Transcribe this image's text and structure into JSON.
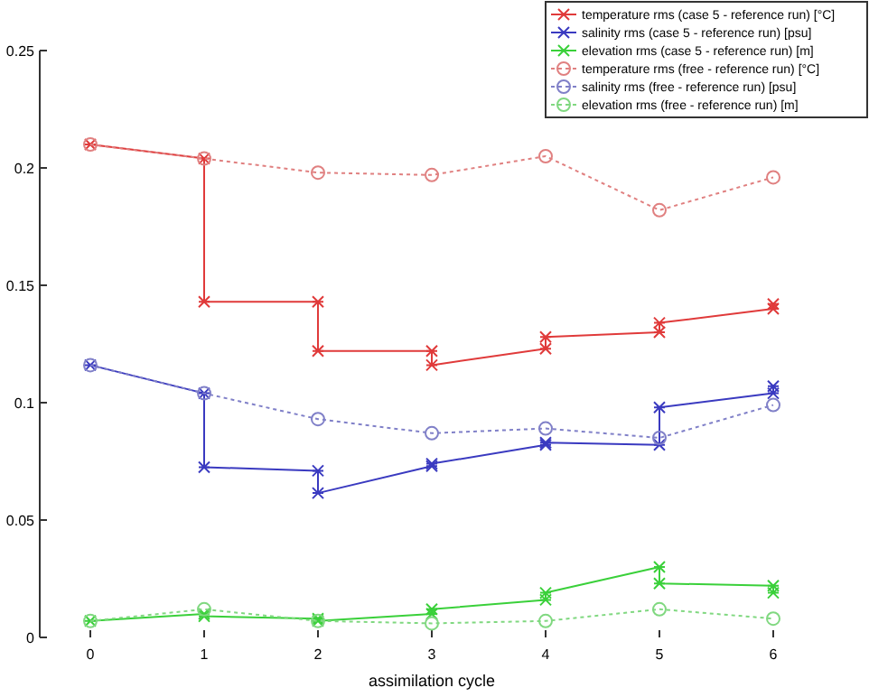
{
  "chart_data": {
    "type": "line",
    "xlabel": "assimilation cycle",
    "xlim": [
      0,
      6
    ],
    "xticks": [
      0,
      1,
      2,
      3,
      4,
      5,
      6
    ],
    "ylim": [
      0,
      0.25
    ],
    "yticks": [
      0,
      0.05,
      0.1,
      0.15,
      0.2,
      0.25
    ],
    "grid": false,
    "legend": "top right",
    "series": [
      {
        "name": "temperature rms (case 5 - reference run) [°C]",
        "color": "#e03a3a",
        "marker": "cross",
        "line_style": "solid",
        "x": [
          0,
          1,
          1,
          2,
          2,
          3,
          3,
          4,
          4,
          5,
          5,
          6,
          6
        ],
        "values": [
          0.21,
          0.204,
          0.143,
          0.143,
          0.122,
          0.122,
          0.116,
          0.123,
          0.128,
          0.13,
          0.134,
          0.14,
          0.142
        ]
      },
      {
        "name": "salinity rms (case 5 - reference run) [psu]",
        "color": "#3a3ac0",
        "marker": "cross",
        "line_style": "solid",
        "x": [
          0,
          1,
          1,
          2,
          2,
          3,
          3,
          4,
          4,
          5,
          5,
          6,
          6
        ],
        "values": [
          0.116,
          0.104,
          0.0725,
          0.071,
          0.0615,
          0.073,
          0.074,
          0.082,
          0.083,
          0.082,
          0.098,
          0.104,
          0.107
        ]
      },
      {
        "name": "elevation rms (case 5 - reference run) [m]",
        "color": "#3ad03a",
        "marker": "cross",
        "line_style": "solid",
        "x": [
          0,
          1,
          1,
          2,
          2,
          3,
          3,
          4,
          4,
          5,
          5,
          6,
          6
        ],
        "values": [
          0.007,
          0.01,
          0.009,
          0.008,
          0.007,
          0.01,
          0.012,
          0.016,
          0.019,
          0.03,
          0.023,
          0.022,
          0.019
        ]
      },
      {
        "name": "temperature rms (free - reference run) [°C]",
        "color": "#e08080",
        "marker": "circle",
        "line_style": "dotted",
        "x": [
          0,
          1,
          2,
          3,
          4,
          5,
          6
        ],
        "values": [
          0.21,
          0.204,
          0.198,
          0.197,
          0.205,
          0.182,
          0.196
        ]
      },
      {
        "name": "salinity rms (free - reference run) [psu]",
        "color": "#8080c8",
        "marker": "circle",
        "line_style": "dotted",
        "x": [
          0,
          1,
          2,
          3,
          4,
          5,
          6
        ],
        "values": [
          0.116,
          0.104,
          0.093,
          0.087,
          0.089,
          0.085,
          0.099
        ]
      },
      {
        "name": "elevation rms (free - reference run) [m]",
        "color": "#80d880",
        "marker": "circle",
        "line_style": "dotted",
        "x": [
          0,
          1,
          2,
          3,
          4,
          5,
          6
        ],
        "values": [
          0.007,
          0.012,
          0.007,
          0.006,
          0.007,
          0.012,
          0.008
        ]
      }
    ]
  }
}
